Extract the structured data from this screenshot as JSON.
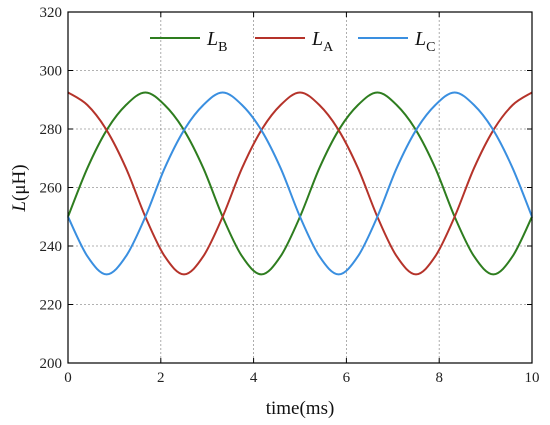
{
  "chart_data": {
    "type": "line",
    "title": "",
    "xlabel": "time(ms)",
    "ylabel_main": "L",
    "ylabel_unit": "(μH)",
    "xlim": [
      0,
      10
    ],
    "ylim": [
      200,
      320
    ],
    "xticks": [
      "0",
      "2",
      "4",
      "6",
      "8",
      "10"
    ],
    "yticks": [
      "200",
      "220",
      "240",
      "260",
      "280",
      "300",
      "320"
    ],
    "grid": true,
    "legend_position": "top-center",
    "series": [
      {
        "name": "L",
        "name_sub": "B",
        "color": "#2e7d1f",
        "x": [
          0,
          0.417,
          0.833,
          1.25,
          1.667,
          2.083,
          2.5,
          2.917,
          3.333,
          3.75,
          4.167,
          4.583,
          5,
          5.417,
          5.833,
          6.25,
          6.667,
          7.083,
          7.5,
          7.917,
          8.333,
          8.75,
          9.167,
          9.583,
          10
        ],
        "y": [
          250,
          266.6,
          279.6,
          288.2,
          292.5,
          288.2,
          279.6,
          266.6,
          250,
          236.5,
          230.3,
          236.5,
          250,
          266.6,
          279.6,
          288.2,
          292.5,
          288.2,
          279.6,
          266.6,
          250,
          236.5,
          230.3,
          236.5,
          250
        ]
      },
      {
        "name": "L",
        "name_sub": "A",
        "color": "#b5332a",
        "x": [
          0,
          0.417,
          0.833,
          1.25,
          1.667,
          2.083,
          2.5,
          2.917,
          3.333,
          3.75,
          4.167,
          4.583,
          5,
          5.417,
          5.833,
          6.25,
          6.667,
          7.083,
          7.5,
          7.917,
          8.333,
          8.75,
          9.167,
          9.583,
          10
        ],
        "y": [
          292.5,
          288.2,
          279.6,
          266.6,
          250,
          236.5,
          230.3,
          236.5,
          250,
          266.6,
          279.6,
          288.2,
          292.5,
          288.2,
          279.6,
          266.6,
          250,
          236.5,
          230.3,
          236.5,
          250,
          266.6,
          279.6,
          288.2,
          292.5
        ]
      },
      {
        "name": "L",
        "name_sub": "C",
        "color": "#3a8fe0",
        "x": [
          0,
          0.417,
          0.833,
          1.25,
          1.667,
          2.083,
          2.5,
          2.917,
          3.333,
          3.75,
          4.167,
          4.583,
          5,
          5.417,
          5.833,
          6.25,
          6.667,
          7.083,
          7.5,
          7.917,
          8.333,
          8.75,
          9.167,
          9.583,
          10
        ],
        "y": [
          250,
          236.5,
          230.3,
          236.5,
          250,
          266.6,
          279.6,
          288.2,
          292.5,
          288.2,
          279.6,
          266.6,
          250,
          236.5,
          230.3,
          236.5,
          250,
          266.6,
          279.6,
          288.2,
          292.5,
          288.2,
          279.6,
          266.6,
          250
        ]
      }
    ]
  }
}
